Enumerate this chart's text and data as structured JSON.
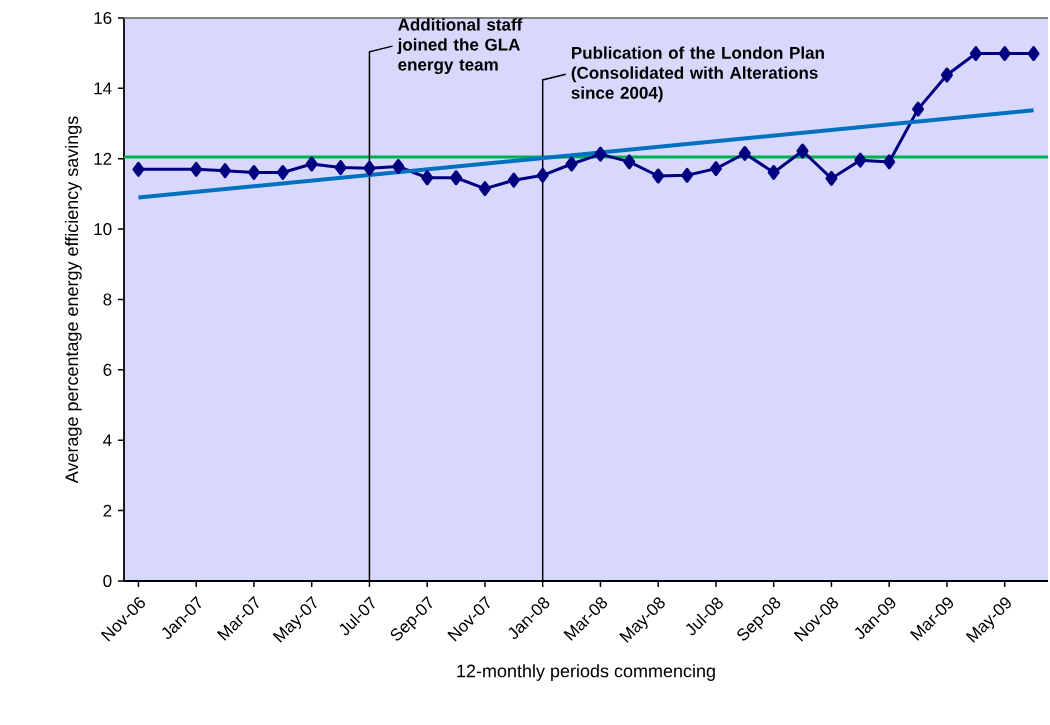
{
  "chart_data": {
    "type": "line",
    "xlabel": "12-monthly periods commencing",
    "ylabel": "Average percentage energy efficiency savings",
    "categories": [
      "Nov-06",
      null,
      "Jan-07",
      null,
      "Mar-07",
      null,
      "May-07",
      null,
      "Jul-07",
      null,
      "Sep-07",
      null,
      "Nov-07",
      null,
      "Jan-08",
      null,
      "Mar-08",
      null,
      "May-08",
      null,
      "Jul-08",
      null,
      "Sep-08",
      null,
      "Nov-08",
      null,
      "Jan-09",
      null,
      "Mar-09",
      null,
      "May-09",
      null
    ],
    "series": [
      {
        "color": "#000080",
        "marker": "diamond",
        "values": [
          11.7,
          null,
          11.7,
          11.66,
          11.61,
          11.61,
          11.85,
          11.75,
          11.73,
          11.78,
          11.46,
          11.46,
          11.15,
          11.39,
          11.53,
          11.85,
          12.13,
          11.91,
          11.51,
          11.53,
          11.72,
          12.15,
          11.61,
          12.22,
          11.44,
          11.96,
          11.91,
          13.41,
          14.38,
          14.99,
          14.99,
          14.99
        ]
      },
      {
        "color": "#0070c0",
        "marker": "none",
        "values": [
          10.9,
          null,
          null,
          null,
          null,
          null,
          null,
          null,
          null,
          null,
          null,
          null,
          null,
          null,
          null,
          null,
          null,
          null,
          null,
          null,
          null,
          null,
          null,
          null,
          null,
          null,
          null,
          null,
          null,
          null,
          null,
          13.38
        ]
      }
    ],
    "ref_lines": [
      {
        "axis": "y",
        "value": 12.05,
        "color": "#00b050"
      },
      {
        "axis": "x",
        "value": "Jul-07",
        "label": "Additional staff joined the GLA energy team",
        "color": "#000000"
      },
      {
        "axis": "x",
        "value": "Jan-08",
        "label": "Publication of the London Plan (Consolidated with Alterations since 2004)",
        "color": "#000000"
      }
    ],
    "ylim": [
      0,
      16
    ],
    "yticks": [
      0,
      2,
      4,
      6,
      8,
      10,
      12,
      14,
      16
    ],
    "grid": false
  }
}
